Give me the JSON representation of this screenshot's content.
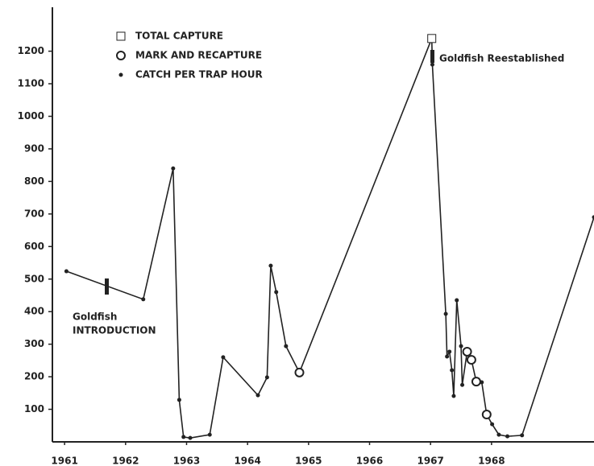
{
  "chart_data": {
    "type": "line",
    "x": [
      1961.03,
      1962.29,
      1962.78,
      1962.88,
      1962.95,
      1963.06,
      1963.38,
      1963.6,
      1964.17,
      1964.32,
      1964.38,
      1964.47,
      1964.63,
      1964.85,
      1967.02,
      1967.03,
      1967.25,
      1967.27,
      1967.31,
      1967.35,
      1967.38,
      1967.43,
      1967.5,
      1967.52,
      1967.6,
      1967.67,
      1967.75,
      1967.84,
      1967.92,
      1968.01,
      1968.12,
      1968.26,
      1968.5,
      1969.68
    ],
    "series": [
      {
        "name": "TOTAL CAPTURE",
        "color": "#222",
        "values": [
          null,
          null,
          null,
          null,
          null,
          null,
          null,
          null,
          null,
          null,
          null,
          null,
          null,
          null,
          1239,
          null,
          null,
          null,
          null,
          null,
          null,
          null,
          null,
          null,
          null,
          null,
          null,
          null,
          null,
          null,
          null,
          null,
          null,
          null
        ]
      },
      {
        "name": "MARK AND RECAPTURE",
        "color": "#222",
        "values": [
          null,
          null,
          null,
          null,
          null,
          null,
          null,
          null,
          null,
          null,
          null,
          null,
          null,
          213,
          null,
          null,
          null,
          null,
          null,
          null,
          null,
          null,
          null,
          null,
          277,
          252,
          185,
          null,
          84,
          null,
          null,
          null,
          null,
          null
        ]
      },
      {
        "name": "CATCH PER TRAP HOUR",
        "color": "#222",
        "values": [
          524,
          438,
          840,
          129,
          15,
          12,
          22,
          260,
          143,
          198,
          541,
          460,
          294,
          null,
          null,
          1159,
          393,
          262,
          277,
          220,
          141,
          435,
          294,
          175,
          null,
          null,
          null,
          183,
          null,
          54,
          22,
          17,
          20,
          690
        ]
      }
    ],
    "xlim": [
      1960.8,
      1969.68
    ],
    "xticks": [
      1961,
      1962,
      1963,
      1964,
      1965,
      1966,
      1967,
      1968
    ],
    "ylim": [
      0,
      1335
    ],
    "yticks": [
      100,
      200,
      300,
      400,
      500,
      600,
      700,
      800,
      900,
      1000,
      1100,
      1200
    ],
    "annotations": [
      [
        "Goldfish",
        "INTRODUCTION"
      ],
      [
        "Goldfish Reestablished"
      ]
    ]
  }
}
